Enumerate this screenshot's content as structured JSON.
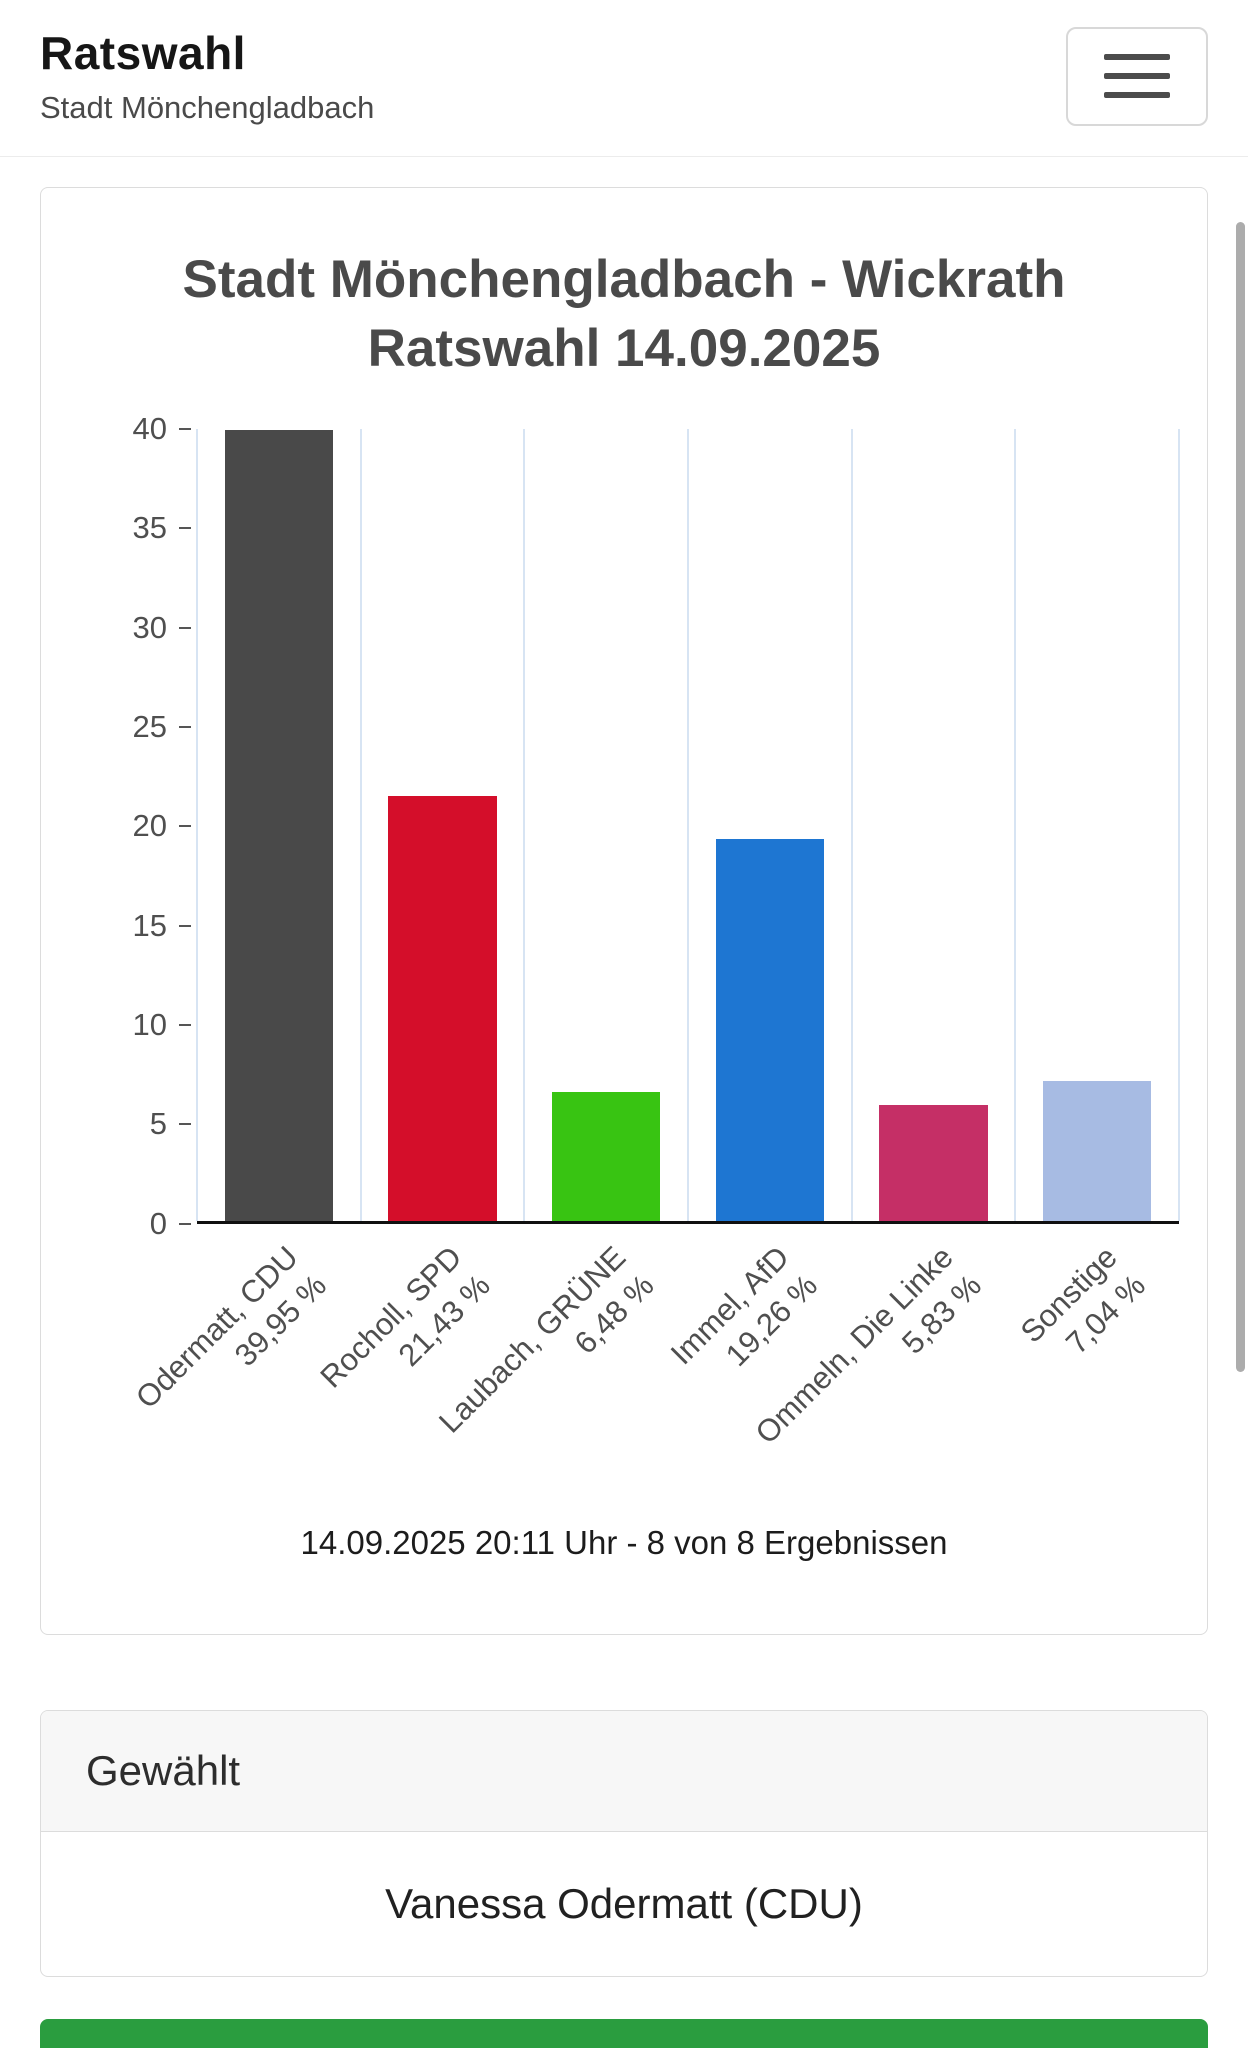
{
  "header": {
    "title": "Ratswahl",
    "subtitle": "Stadt Mönchengladbach"
  },
  "chart_data": {
    "type": "bar",
    "title_lines": [
      "Stadt Mönchengladbach - Wickrath",
      "Ratswahl 14.09.2025"
    ],
    "title": "Stadt Mönchengladbach - Wickrath Ratswahl 14.09.2025",
    "categories": [
      "Odermatt, CDU",
      "Rocholl, SPD",
      "Laubach, GRÜNE",
      "Immel, AfD",
      "Ommeln, Die Linke",
      "Sonstige"
    ],
    "values": [
      39.95,
      21.43,
      6.48,
      19.26,
      5.83,
      7.04
    ],
    "value_labels": [
      "39,95 %",
      "21,43 %",
      "6,48 %",
      "19,26 %",
      "5,83 %",
      "7,04 %"
    ],
    "colors": [
      "#494949",
      "#d40e2a",
      "#38c412",
      "#1e76d2",
      "#c52f66",
      "#a7bbe3"
    ],
    "ylim": [
      0,
      40
    ],
    "ytick_step": 5,
    "grid": "vertical",
    "legend": "none",
    "footer": "14.09.2025 20:11 Uhr - 8 von 8 Ergebnissen"
  },
  "elected": {
    "header": "Gewählt",
    "value": "Vanessa Odermatt (CDU)"
  },
  "bottom_bar": {
    "color": "#2a9d3f"
  }
}
